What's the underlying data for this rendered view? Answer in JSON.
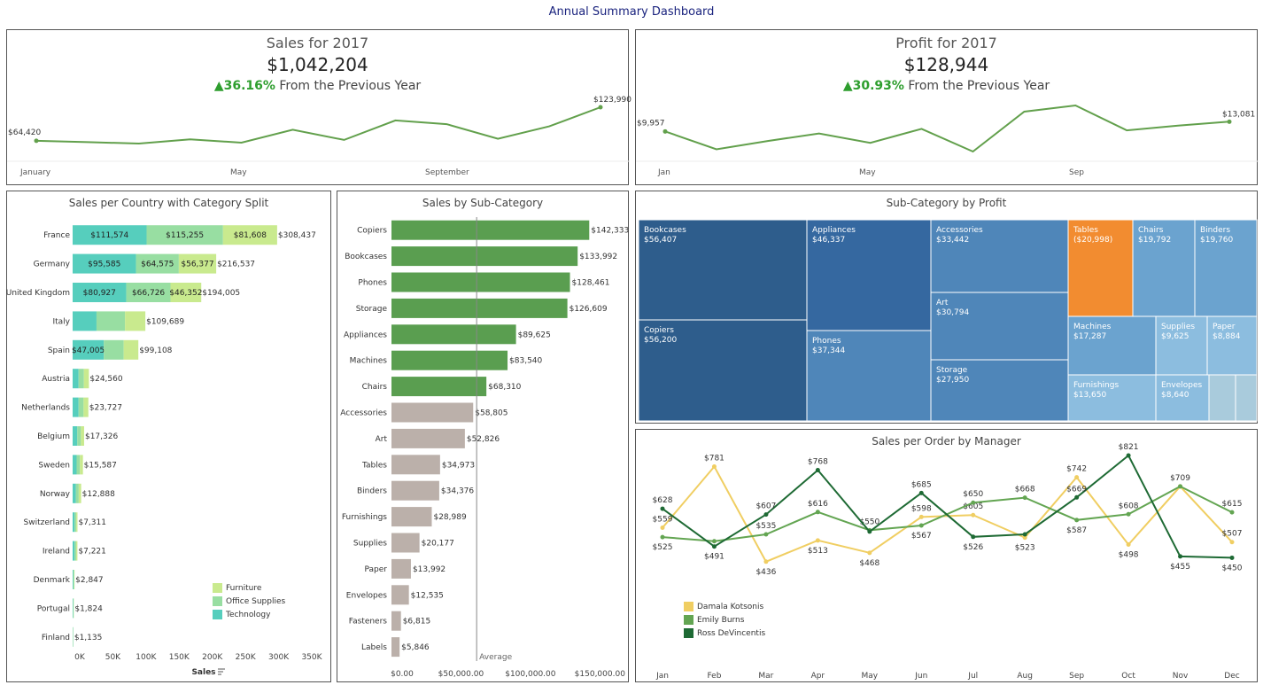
{
  "dashboard_title": "Annual Summary Dashboard",
  "sales_kpi": {
    "label": "Sales for 2017",
    "value": "$1,042,204",
    "arrow": "▲",
    "change": "36.16%",
    "change_text": " From the Previous Year"
  },
  "profit_kpi": {
    "label": "Profit for 2017",
    "value": "$128,944",
    "arrow": "▲",
    "change": "30.93%",
    "change_text": " From the Previous Year"
  },
  "colors": {
    "furniture": "#c9ea8e",
    "office": "#98dea2",
    "technology": "#56cebd",
    "top_bar": "#5a9e50",
    "other_bar": "#bbb0aa",
    "spark": "#62a04c",
    "negative": "#f28c30",
    "damala": "#f0ce62",
    "emily": "#63a552",
    "ross": "#1e6a34"
  },
  "chart_data": [
    {
      "id": "sales_sparkline",
      "type": "line",
      "x": [
        "Jan",
        "Feb",
        "Mar",
        "Apr",
        "May",
        "Jun",
        "Jul",
        "Aug",
        "Sep",
        "Oct",
        "Nov",
        "Dec"
      ],
      "x_tick_labels": [
        "January",
        "May",
        "September"
      ],
      "values": [
        64420,
        62000,
        59500,
        67000,
        61000,
        84000,
        66000,
        100500,
        94000,
        68000,
        90000,
        123990
      ],
      "value_labels": {
        "first": "$64,420",
        "last": "$123,990"
      }
    },
    {
      "id": "profit_sparkline",
      "type": "line",
      "x": [
        "Jan",
        "Feb",
        "Mar",
        "Apr",
        "May",
        "Jun",
        "Jul",
        "Aug",
        "Sep",
        "Oct",
        "Nov",
        "Dec"
      ],
      "x_tick_labels": [
        "Jan",
        "May",
        "Sep"
      ],
      "values": [
        9957,
        4200,
        6900,
        9300,
        6300,
        10800,
        3500,
        16300,
        18300,
        10300,
        11800,
        13081
      ],
      "value_labels": {
        "first": "$9,957",
        "last": "$13,081"
      }
    },
    {
      "id": "sales_per_country",
      "type": "bar",
      "title": "Sales per Country with Category Split",
      "xlabel": "Sales",
      "x_ticks": [
        "0K",
        "50K",
        "100K",
        "150K",
        "200K",
        "250K",
        "300K",
        "350K"
      ],
      "xlim": [
        0,
        350000
      ],
      "legend": [
        "Furniture",
        "Office Supplies",
        "Technology"
      ],
      "countries": [
        {
          "name": "France",
          "total": "$308,437",
          "tech": 111574,
          "office": 115255,
          "furn": 81608,
          "tech_label": "$111,574",
          "office_label": "$115,255",
          "furn_label": "$81,608"
        },
        {
          "name": "Germany",
          "total": "$216,537",
          "tech": 95585,
          "office": 64575,
          "furn": 56377,
          "tech_label": "$95,585",
          "office_label": "$64,575",
          "furn_label": "$56,377"
        },
        {
          "name": "United Kingdom",
          "total": "$194,005",
          "tech": 80927,
          "office": 66726,
          "furn": 46352,
          "tech_label": "$80,927",
          "office_label": "$66,726",
          "furn_label": "$46,352"
        },
        {
          "name": "Italy",
          "total": "$109,689",
          "tech": 36000,
          "office": 43000,
          "furn": 30689
        },
        {
          "name": "Spain",
          "total": "$99,108",
          "tech": 47005,
          "office": 30000,
          "furn": 22103,
          "tech_label": "$47,005"
        },
        {
          "name": "Austria",
          "total": "$24,560",
          "tech": 9000,
          "office": 8000,
          "furn": 7560
        },
        {
          "name": "Netherlands",
          "total": "$23,727",
          "tech": 9000,
          "office": 7500,
          "furn": 7227
        },
        {
          "name": "Belgium",
          "total": "$17,326",
          "tech": 7000,
          "office": 5500,
          "furn": 4826
        },
        {
          "name": "Sweden",
          "total": "$15,587",
          "tech": 6000,
          "office": 5000,
          "furn": 4587
        },
        {
          "name": "Norway",
          "total": "$12,888",
          "tech": 5000,
          "office": 4200,
          "furn": 3688
        },
        {
          "name": "Switzerland",
          "total": "$7,311",
          "tech": 3000,
          "office": 2500,
          "furn": 1811
        },
        {
          "name": "Ireland",
          "total": "$7,221",
          "tech": 3000,
          "office": 2400,
          "furn": 1821
        },
        {
          "name": "Denmark",
          "total": "$2,847",
          "tech": 1200,
          "office": 900,
          "furn": 747
        },
        {
          "name": "Portugal",
          "total": "$1,824",
          "tech": 800,
          "office": 600,
          "furn": 424
        },
        {
          "name": "Finland",
          "total": "$1,135",
          "tech": 500,
          "office": 400,
          "furn": 235
        }
      ]
    },
    {
      "id": "sales_by_subcategory",
      "type": "bar",
      "title": "Sales by Sub-Category",
      "x_ticks": [
        "$0.00",
        "$50,000.00",
        "$100,000.00",
        "$150,000.00"
      ],
      "xlim": [
        0,
        160000
      ],
      "average": 61300,
      "average_label": "Average",
      "categories": [
        "Copiers",
        "Bookcases",
        "Phones",
        "Storage",
        "Appliances",
        "Machines",
        "Chairs",
        "Accessories",
        "Art",
        "Tables",
        "Binders",
        "Furnishings",
        "Supplies",
        "Paper",
        "Envelopes",
        "Fasteners",
        "Labels"
      ],
      "values": [
        142333,
        133992,
        128461,
        126609,
        89625,
        83540,
        68310,
        58805,
        52826,
        34973,
        34376,
        28989,
        20177,
        13992,
        12535,
        6815,
        5846
      ],
      "labels": [
        "$142,333",
        "$133,992",
        "$128,461",
        "$126,609",
        "$89,625",
        "$83,540",
        "$68,310",
        "$58,805",
        "$52,826",
        "$34,973",
        "$34,376",
        "$28,989",
        "$20,177",
        "$13,992",
        "$12,535",
        "$6,815",
        "$5,846"
      ]
    },
    {
      "id": "subcategory_by_profit",
      "type": "heatmap",
      "title": "Sub-Category  by Profit",
      "cells": [
        {
          "name": "Bookcases",
          "value": "$56,407",
          "profit": 56407
        },
        {
          "name": "Copiers",
          "value": "$56,200",
          "profit": 56200
        },
        {
          "name": "Appliances",
          "value": "$46,337",
          "profit": 46337
        },
        {
          "name": "Phones",
          "value": "$37,344",
          "profit": 37344
        },
        {
          "name": "Accessories",
          "value": "$33,442",
          "profit": 33442
        },
        {
          "name": "Art",
          "value": "$30,794",
          "profit": 30794
        },
        {
          "name": "Storage",
          "value": "$27,950",
          "profit": 27950
        },
        {
          "name": "Tables",
          "value": "($20,998)",
          "profit": -20998
        },
        {
          "name": "Chairs",
          "value": "$19,792",
          "profit": 19792
        },
        {
          "name": "Binders",
          "value": "$19,760",
          "profit": 19760
        },
        {
          "name": "Machines",
          "value": "$17,287",
          "profit": 17287
        },
        {
          "name": "Supplies",
          "value": "$9,625",
          "profit": 9625
        },
        {
          "name": "Paper",
          "value": "$8,884",
          "profit": 8884
        },
        {
          "name": "Furnishings",
          "value": "$13,650",
          "profit": 13650
        },
        {
          "name": "Envelopes",
          "value": "$8,640",
          "profit": 8640
        },
        {
          "name": "",
          "value": "",
          "profit": 6000
        },
        {
          "name": "",
          "value": "",
          "profit": 4500
        }
      ]
    },
    {
      "id": "sales_per_order_by_manager",
      "type": "line",
      "title": "Sales per Order by Manager",
      "x": [
        "Jan",
        "Feb",
        "Mar",
        "Apr",
        "May",
        "Jun",
        "Jul",
        "Aug",
        "Sep",
        "Oct",
        "Nov",
        "Dec"
      ],
      "ylim": [
        400,
        850
      ],
      "series": [
        {
          "name": "Damala Kotsonis",
          "values": [
            559,
            781,
            436,
            513,
            468,
            598,
            605,
            523,
            742,
            498,
            709,
            507
          ],
          "labels": [
            "$559",
            "$781",
            "$436",
            "$513",
            "$468",
            "$598",
            "$605",
            "$523",
            "$742",
            "$498",
            "$709",
            "$507"
          ]
        },
        {
          "name": "Emily Burns",
          "values": [
            525,
            510,
            535,
            616,
            550,
            567,
            650,
            668,
            587,
            608,
            709,
            615
          ],
          "labels": [
            "$525",
            "",
            "$535",
            "$616",
            "$550",
            "$567",
            "$650",
            "$668",
            "$587",
            "$608",
            "",
            "$615"
          ]
        },
        {
          "name": "Ross DeVincentis",
          "values": [
            628,
            491,
            607,
            768,
            545,
            685,
            526,
            535,
            669,
            821,
            455,
            450
          ],
          "labels": [
            "$628",
            "$491",
            "$607",
            "$768",
            "",
            "$685",
            "$526",
            "",
            "$669",
            "$821",
            "$455",
            "$450"
          ]
        }
      ]
    }
  ]
}
